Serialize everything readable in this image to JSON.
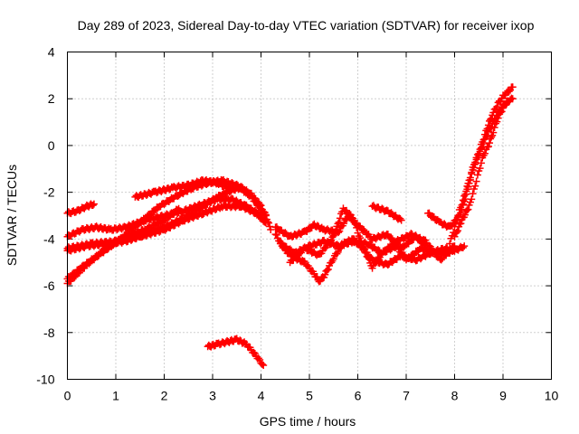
{
  "chart_data": {
    "type": "scatter",
    "title": "Day 289 of 2023, Sidereal Day-to-day VTEC variation (SDTVAR) for receiver ixop",
    "xlabel": "GPS time / hours",
    "ylabel": "SDTVAR / TECUs",
    "xlim": [
      0,
      10
    ],
    "ylim": [
      -10,
      4
    ],
    "xticks": [
      "0",
      "1",
      "2",
      "3",
      "4",
      "5",
      "6",
      "7",
      "8",
      "9",
      "10"
    ],
    "yticks": [
      "4",
      "2",
      "0",
      "-2",
      "-4",
      "-6",
      "-8",
      "-10"
    ],
    "grid": true,
    "marker": "+",
    "color": "#ff0000",
    "series": [
      {
        "name": "track-1",
        "points": [
          [
            0,
            -2.9
          ],
          [
            0.2,
            -2.8
          ],
          [
            0.4,
            -2.6
          ],
          [
            0.55,
            -2.5
          ]
        ]
      },
      {
        "name": "track-2",
        "points": [
          [
            0,
            -3.9
          ],
          [
            0.3,
            -3.6
          ],
          [
            0.6,
            -3.5
          ],
          [
            0.9,
            -3.6
          ],
          [
            1.2,
            -3.5
          ],
          [
            1.6,
            -3.2
          ],
          [
            2.0,
            -3.0
          ],
          [
            2.4,
            -2.8
          ],
          [
            2.8,
            -2.5
          ],
          [
            3.1,
            -2.3
          ],
          [
            3.4,
            -2.3
          ],
          [
            3.7,
            -2.6
          ],
          [
            4.0,
            -3.0
          ],
          [
            4.1,
            -3.3
          ]
        ]
      },
      {
        "name": "track-3",
        "points": [
          [
            0,
            -4.5
          ],
          [
            0.4,
            -4.3
          ],
          [
            0.8,
            -4.2
          ],
          [
            1.2,
            -4.1
          ],
          [
            1.6,
            -3.8
          ],
          [
            2.0,
            -3.5
          ],
          [
            2.4,
            -3.1
          ],
          [
            2.8,
            -2.6
          ],
          [
            3.1,
            -2.2
          ],
          [
            3.4,
            -1.9
          ],
          [
            3.6,
            -1.8
          ],
          [
            3.8,
            -2.1
          ],
          [
            4.0,
            -2.6
          ],
          [
            4.1,
            -3.0
          ]
        ]
      },
      {
        "name": "track-4",
        "points": [
          [
            0,
            -5.7
          ],
          [
            0.3,
            -5.2
          ],
          [
            0.7,
            -4.6
          ],
          [
            1.1,
            -4.0
          ],
          [
            1.5,
            -3.3
          ],
          [
            1.9,
            -2.6
          ],
          [
            2.3,
            -2.1
          ],
          [
            2.6,
            -1.8
          ],
          [
            2.9,
            -1.6
          ],
          [
            3.2,
            -1.5
          ],
          [
            3.5,
            -1.7
          ],
          [
            3.8,
            -2.2
          ],
          [
            4.1,
            -3.0
          ],
          [
            4.2,
            -3.6
          ]
        ]
      },
      {
        "name": "track-5",
        "points": [
          [
            0,
            -5.9
          ],
          [
            0.4,
            -5.1
          ],
          [
            0.8,
            -4.4
          ],
          [
            1.2,
            -3.9
          ],
          [
            1.6,
            -3.6
          ],
          [
            2.0,
            -3.2
          ],
          [
            2.3,
            -2.7
          ]
        ]
      },
      {
        "name": "track-6",
        "points": [
          [
            1.4,
            -2.2
          ],
          [
            1.8,
            -2.0
          ],
          [
            2.2,
            -1.8
          ],
          [
            2.5,
            -1.7
          ],
          [
            2.8,
            -1.5
          ],
          [
            3.1,
            -1.6
          ],
          [
            3.4,
            -1.9
          ]
        ]
      },
      {
        "name": "track-7",
        "points": [
          [
            0,
            -4.4
          ],
          [
            0.5,
            -4.2
          ],
          [
            1.0,
            -4.1
          ],
          [
            1.5,
            -3.9
          ],
          [
            2.0,
            -3.6
          ],
          [
            2.4,
            -3.2
          ],
          [
            2.8,
            -2.9
          ],
          [
            3.2,
            -2.6
          ],
          [
            3.6,
            -2.6
          ],
          [
            3.9,
            -2.9
          ],
          [
            4.1,
            -3.3
          ]
        ]
      },
      {
        "name": "track-8",
        "points": [
          [
            2.9,
            -8.6
          ],
          [
            3.1,
            -8.5
          ],
          [
            3.3,
            -8.4
          ],
          [
            3.5,
            -8.3
          ],
          [
            3.7,
            -8.5
          ],
          [
            3.9,
            -9.0
          ],
          [
            4.05,
            -9.4
          ]
        ]
      },
      {
        "name": "track-9",
        "points": [
          [
            4.3,
            -3.8
          ],
          [
            4.5,
            -4.5
          ],
          [
            4.7,
            -4.8
          ],
          [
            4.9,
            -5.0
          ],
          [
            5.1,
            -5.5
          ],
          [
            5.2,
            -5.8
          ],
          [
            5.3,
            -5.6
          ],
          [
            5.5,
            -4.8
          ],
          [
            5.7,
            -4.2
          ],
          [
            5.9,
            -4.0
          ],
          [
            6.1,
            -4.4
          ],
          [
            6.3,
            -4.9
          ],
          [
            6.6,
            -5.1
          ],
          [
            6.9,
            -4.7
          ],
          [
            7.2,
            -4.9
          ],
          [
            7.5,
            -4.6
          ],
          [
            7.8,
            -4.4
          ],
          [
            8.0,
            -4.5
          ],
          [
            8.2,
            -4.3
          ]
        ]
      },
      {
        "name": "track-10",
        "points": [
          [
            4.3,
            -3.5
          ],
          [
            4.6,
            -3.9
          ],
          [
            4.9,
            -3.7
          ],
          [
            5.1,
            -3.4
          ],
          [
            5.3,
            -3.6
          ],
          [
            5.6,
            -3.7
          ],
          [
            5.8,
            -3.0
          ],
          [
            6.0,
            -3.4
          ],
          [
            6.3,
            -4.0
          ],
          [
            6.6,
            -3.8
          ],
          [
            6.9,
            -4.4
          ],
          [
            7.2,
            -3.9
          ],
          [
            7.4,
            -4.3
          ]
        ]
      },
      {
        "name": "track-11",
        "points": [
          [
            4.4,
            -4.2
          ],
          [
            4.7,
            -4.6
          ],
          [
            5.0,
            -4.3
          ],
          [
            5.3,
            -4.1
          ],
          [
            5.6,
            -4.3
          ],
          [
            5.9,
            -4.1
          ],
          [
            6.2,
            -4.2
          ],
          [
            6.5,
            -4.6
          ],
          [
            6.8,
            -4.3
          ],
          [
            7.0,
            -4.9
          ],
          [
            7.3,
            -4.4
          ],
          [
            7.6,
            -4.6
          ],
          [
            7.9,
            -4.6
          ]
        ]
      },
      {
        "name": "track-12",
        "points": [
          [
            4.6,
            -5.0
          ],
          [
            4.9,
            -4.4
          ],
          [
            5.2,
            -4.7
          ],
          [
            5.5,
            -3.9
          ],
          [
            5.7,
            -2.7
          ],
          [
            5.9,
            -3.1
          ],
          [
            6.1,
            -4.3
          ],
          [
            6.3,
            -5.2
          ],
          [
            6.5,
            -4.6
          ],
          [
            6.8,
            -4.1
          ],
          [
            7.1,
            -3.8
          ],
          [
            7.4,
            -4.1
          ],
          [
            7.7,
            -4.9
          ],
          [
            8.0,
            -4.3
          ]
        ]
      },
      {
        "name": "track-13",
        "points": [
          [
            6.3,
            -2.6
          ],
          [
            6.6,
            -2.8
          ],
          [
            6.9,
            -3.2
          ]
        ]
      },
      {
        "name": "track-14",
        "points": [
          [
            7.45,
            -2.9
          ],
          [
            7.7,
            -3.3
          ],
          [
            7.9,
            -3.5
          ],
          [
            8.1,
            -3.0
          ],
          [
            8.2,
            -2.4
          ],
          [
            8.3,
            -1.6
          ],
          [
            8.4,
            -0.9
          ],
          [
            8.5,
            -0.4
          ],
          [
            8.6,
            0.1
          ],
          [
            8.7,
            0.6
          ],
          [
            8.8,
            1.0
          ],
          [
            8.9,
            1.4
          ],
          [
            9.0,
            1.7
          ],
          [
            9.1,
            1.9
          ],
          [
            9.2,
            2.0
          ]
        ]
      },
      {
        "name": "track-15",
        "points": [
          [
            7.9,
            -4.2
          ],
          [
            8.0,
            -3.5
          ],
          [
            8.1,
            -2.8
          ],
          [
            8.2,
            -2.2
          ],
          [
            8.3,
            -1.5
          ],
          [
            8.4,
            -0.8
          ],
          [
            8.5,
            -0.3
          ],
          [
            8.6,
            0.3
          ],
          [
            8.7,
            0.9
          ],
          [
            8.8,
            1.4
          ],
          [
            8.9,
            1.8
          ],
          [
            9.0,
            2.1
          ],
          [
            9.1,
            2.3
          ],
          [
            9.2,
            2.5
          ]
        ]
      },
      {
        "name": "track-16",
        "points": [
          [
            8.0,
            -3.9
          ],
          [
            8.15,
            -3.2
          ],
          [
            8.3,
            -2.6
          ],
          [
            8.4,
            -1.9
          ],
          [
            8.5,
            -1.1
          ],
          [
            8.6,
            -0.4
          ],
          [
            8.7,
            0.0
          ],
          [
            8.8,
            0.6
          ],
          [
            8.9,
            1.2
          ],
          [
            9.0,
            1.6
          ],
          [
            9.1,
            1.9
          ]
        ]
      }
    ]
  }
}
